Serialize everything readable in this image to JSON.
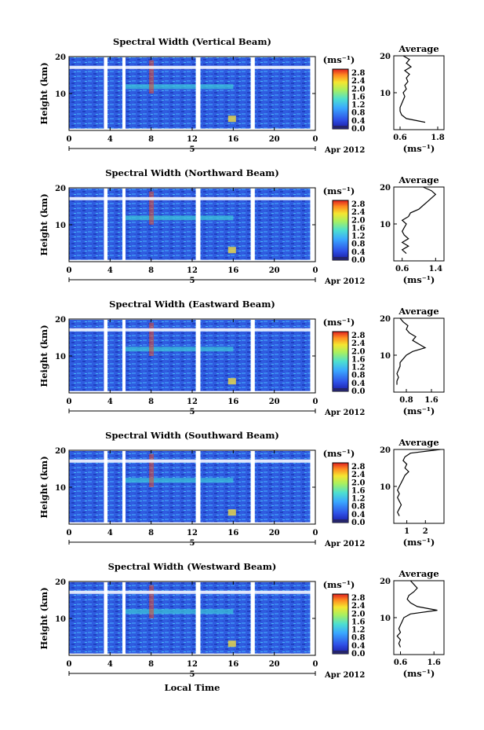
{
  "figure": {
    "xlabel": "Local Time",
    "ylabel": "Height (km)",
    "date_label": "Apr 2012",
    "colorbar_unit": "(ms⁻¹)",
    "avg_title": "Average",
    "avg_unit": "(ms⁻¹)"
  },
  "chart_data": [
    {
      "type": "heatmap",
      "title": "Spectral Width (Vertical Beam)",
      "x_ticks": [
        "0",
        "4",
        "8",
        "12",
        "16",
        "20",
        "0"
      ],
      "day_label": "5",
      "y_ticks": [
        "10",
        "20"
      ],
      "ylim": [
        0,
        20
      ],
      "colorbar_ticks": [
        "0.0",
        "0.4",
        "0.8",
        "1.2",
        "1.6",
        "2.0",
        "2.4",
        "2.8"
      ],
      "colorbar_range": [
        0,
        3.0
      ],
      "avg": {
        "x_ticks": [
          "0.6",
          "1.8"
        ],
        "xlim": [
          0.4,
          2.0
        ],
        "y_ticks": [
          "10",
          "20"
        ],
        "profile": [
          [
            2,
            1.4
          ],
          [
            3,
            0.8
          ],
          [
            4,
            0.65
          ],
          [
            5,
            0.6
          ],
          [
            6,
            0.6
          ],
          [
            7,
            0.65
          ],
          [
            8,
            0.7
          ],
          [
            9,
            0.75
          ],
          [
            10,
            0.7
          ],
          [
            11,
            0.8
          ],
          [
            12,
            0.75
          ],
          [
            13,
            0.85
          ],
          [
            14,
            0.8
          ],
          [
            15,
            0.9
          ],
          [
            16,
            0.75
          ],
          [
            17,
            0.95
          ],
          [
            18,
            0.8
          ],
          [
            19,
            0.9
          ],
          [
            20,
            0.7
          ]
        ]
      }
    },
    {
      "type": "heatmap",
      "title": "Spectral Width (Northward Beam)",
      "x_ticks": [
        "0",
        "4",
        "8",
        "12",
        "16",
        "20",
        "0"
      ],
      "day_label": "5",
      "y_ticks": [
        "10",
        "20"
      ],
      "ylim": [
        0,
        20
      ],
      "colorbar_ticks": [
        "0.0",
        "0.4",
        "0.8",
        "1.2",
        "1.6",
        "2.0",
        "2.4",
        "2.8"
      ],
      "colorbar_range": [
        0,
        3.0
      ],
      "avg": {
        "x_ticks": [
          "0.6",
          "1.4"
        ],
        "xlim": [
          0.4,
          1.6
        ],
        "y_ticks": [
          "10",
          "20"
        ],
        "profile": [
          [
            2,
            0.7
          ],
          [
            3,
            0.6
          ],
          [
            4,
            0.75
          ],
          [
            5,
            0.6
          ],
          [
            6,
            0.75
          ],
          [
            7,
            0.65
          ],
          [
            8,
            0.6
          ],
          [
            9,
            0.65
          ],
          [
            10,
            0.7
          ],
          [
            11,
            0.6
          ],
          [
            12,
            0.75
          ],
          [
            13,
            0.8
          ],
          [
            14,
            1.0
          ],
          [
            15,
            1.1
          ],
          [
            16,
            1.2
          ],
          [
            17,
            1.3
          ],
          [
            18,
            1.4
          ],
          [
            19,
            1.3
          ],
          [
            20,
            1.1
          ]
        ]
      }
    },
    {
      "type": "heatmap",
      "title": "Spectral Width (Eastward Beam)",
      "x_ticks": [
        "0",
        "4",
        "8",
        "12",
        "16",
        "20",
        "0"
      ],
      "day_label": "5",
      "y_ticks": [
        "10",
        "20"
      ],
      "ylim": [
        0,
        20
      ],
      "colorbar_ticks": [
        "0.0",
        "0.4",
        "0.8",
        "1.2",
        "1.6",
        "2.0",
        "2.4",
        "2.8"
      ],
      "colorbar_range": [
        0,
        3.0
      ],
      "avg": {
        "x_ticks": [
          "0.8",
          "1.6"
        ],
        "xlim": [
          0.4,
          2.0
        ],
        "y_ticks": [
          "10",
          "20"
        ],
        "profile": [
          [
            2,
            0.5
          ],
          [
            3,
            0.5
          ],
          [
            4,
            0.55
          ],
          [
            5,
            0.5
          ],
          [
            6,
            0.55
          ],
          [
            7,
            0.6
          ],
          [
            8,
            0.6
          ],
          [
            9,
            0.7
          ],
          [
            10,
            0.8
          ],
          [
            11,
            1.0
          ],
          [
            12,
            1.4
          ],
          [
            13,
            1.2
          ],
          [
            14,
            1.0
          ],
          [
            15,
            1.1
          ],
          [
            16,
            0.9
          ],
          [
            17,
            0.8
          ],
          [
            18,
            0.85
          ],
          [
            19,
            0.7
          ],
          [
            20,
            0.6
          ]
        ]
      }
    },
    {
      "type": "heatmap",
      "title": "Spectral Width (Southward Beam)",
      "x_ticks": [
        "0",
        "4",
        "8",
        "12",
        "16",
        "20",
        "0"
      ],
      "day_label": "5",
      "y_ticks": [
        "10",
        "20"
      ],
      "ylim": [
        0,
        20
      ],
      "colorbar_ticks": [
        "0.0",
        "0.4",
        "0.8",
        "1.2",
        "1.6",
        "2.0",
        "2.4",
        "2.8"
      ],
      "colorbar_range": [
        0,
        3.0
      ],
      "avg": {
        "x_ticks": [
          "1",
          "2"
        ],
        "xlim": [
          0.3,
          3.0
        ],
        "y_ticks": [
          "10",
          "20"
        ],
        "profile": [
          [
            2,
            0.6
          ],
          [
            3,
            0.5
          ],
          [
            4,
            0.6
          ],
          [
            5,
            0.7
          ],
          [
            6,
            0.6
          ],
          [
            7,
            0.5
          ],
          [
            8,
            0.6
          ],
          [
            9,
            0.5
          ],
          [
            10,
            0.6
          ],
          [
            11,
            0.7
          ],
          [
            12,
            0.8
          ],
          [
            13,
            0.9
          ],
          [
            14,
            1.1
          ],
          [
            15,
            0.9
          ],
          [
            16,
            1.0
          ],
          [
            17,
            0.8
          ],
          [
            18,
            0.9
          ],
          [
            19,
            1.2
          ],
          [
            20,
            2.8
          ]
        ]
      }
    },
    {
      "type": "heatmap",
      "title": "Spectral Width (Westward Beam)",
      "x_ticks": [
        "0",
        "4",
        "8",
        "12",
        "16",
        "20",
        "0"
      ],
      "day_label": "5",
      "y_ticks": [
        "10",
        "20"
      ],
      "ylim": [
        0,
        20
      ],
      "colorbar_ticks": [
        "0.0",
        "0.4",
        "0.8",
        "1.2",
        "1.6",
        "2.0",
        "2.4",
        "2.8"
      ],
      "colorbar_range": [
        0,
        3.0
      ],
      "avg": {
        "x_ticks": [
          "0.6",
          "1.6"
        ],
        "xlim": [
          0.4,
          1.9
        ],
        "y_ticks": [
          "10",
          "20"
        ],
        "profile": [
          [
            2,
            0.6
          ],
          [
            3,
            0.55
          ],
          [
            4,
            0.6
          ],
          [
            5,
            0.5
          ],
          [
            6,
            0.6
          ],
          [
            7,
            0.55
          ],
          [
            8,
            0.6
          ],
          [
            9,
            0.65
          ],
          [
            10,
            0.7
          ],
          [
            11,
            0.9
          ],
          [
            12,
            1.7
          ],
          [
            13,
            1.1
          ],
          [
            14,
            0.9
          ],
          [
            15,
            0.8
          ],
          [
            16,
            0.85
          ],
          [
            17,
            1.0
          ],
          [
            18,
            1.1
          ],
          [
            19,
            1.0
          ],
          [
            20,
            0.9
          ]
        ]
      }
    }
  ]
}
